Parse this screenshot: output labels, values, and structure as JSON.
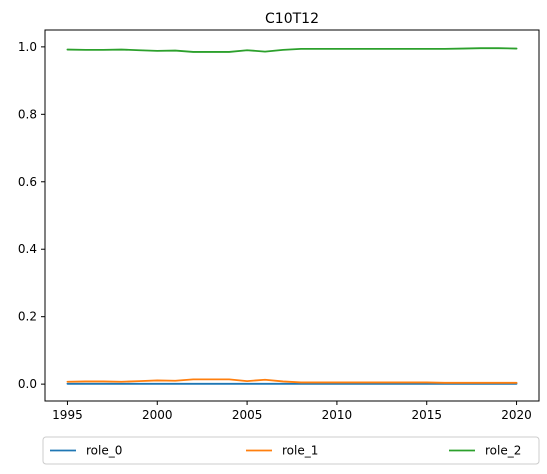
{
  "chart_data": {
    "type": "line",
    "title": "C10T12",
    "xlabel": "",
    "ylabel": "",
    "x": [
      1995,
      1996,
      1997,
      1998,
      1999,
      2000,
      2001,
      2002,
      2003,
      2004,
      2005,
      2006,
      2007,
      2008,
      2009,
      2010,
      2011,
      2012,
      2013,
      2014,
      2015,
      2016,
      2017,
      2018,
      2019,
      2020
    ],
    "xlim": [
      1993.75,
      2021.25
    ],
    "ylim": [
      -0.05,
      1.05
    ],
    "xticks": [
      1995,
      2000,
      2005,
      2010,
      2015,
      2020
    ],
    "yticks": [
      0.0,
      0.2,
      0.4,
      0.6,
      0.8,
      1.0
    ],
    "xtick_labels": [
      "1995",
      "2000",
      "2005",
      "2010",
      "2015",
      "2020"
    ],
    "ytick_labels": [
      "0.0",
      "0.2",
      "0.4",
      "0.6",
      "0.8",
      "1.0"
    ],
    "grid": false,
    "legend_position": "bottom, below axes, 3 columns",
    "series": [
      {
        "name": "role_0",
        "color": "#1f77b4",
        "values": [
          0.001,
          0.001,
          0.001,
          0.001,
          0.001,
          0.001,
          0.001,
          0.001,
          0.001,
          0.001,
          0.001,
          0.001,
          0.001,
          0.001,
          0.001,
          0.001,
          0.001,
          0.001,
          0.001,
          0.001,
          0.001,
          0.001,
          0.001,
          0.001,
          0.001,
          0.001
        ]
      },
      {
        "name": "role_1",
        "color": "#ff7f0e",
        "values": [
          0.007,
          0.008,
          0.008,
          0.007,
          0.009,
          0.011,
          0.01,
          0.014,
          0.014,
          0.014,
          0.009,
          0.013,
          0.008,
          0.005,
          0.005,
          0.005,
          0.005,
          0.005,
          0.005,
          0.005,
          0.005,
          0.004,
          0.004,
          0.004,
          0.004,
          0.004
        ]
      },
      {
        "name": "role_2",
        "color": "#2ca02c",
        "values": [
          0.992,
          0.991,
          0.991,
          0.992,
          0.99,
          0.988,
          0.989,
          0.985,
          0.985,
          0.985,
          0.99,
          0.986,
          0.991,
          0.994,
          0.994,
          0.994,
          0.994,
          0.994,
          0.994,
          0.994,
          0.994,
          0.994,
          0.995,
          0.996,
          0.996,
          0.995
        ]
      }
    ]
  }
}
